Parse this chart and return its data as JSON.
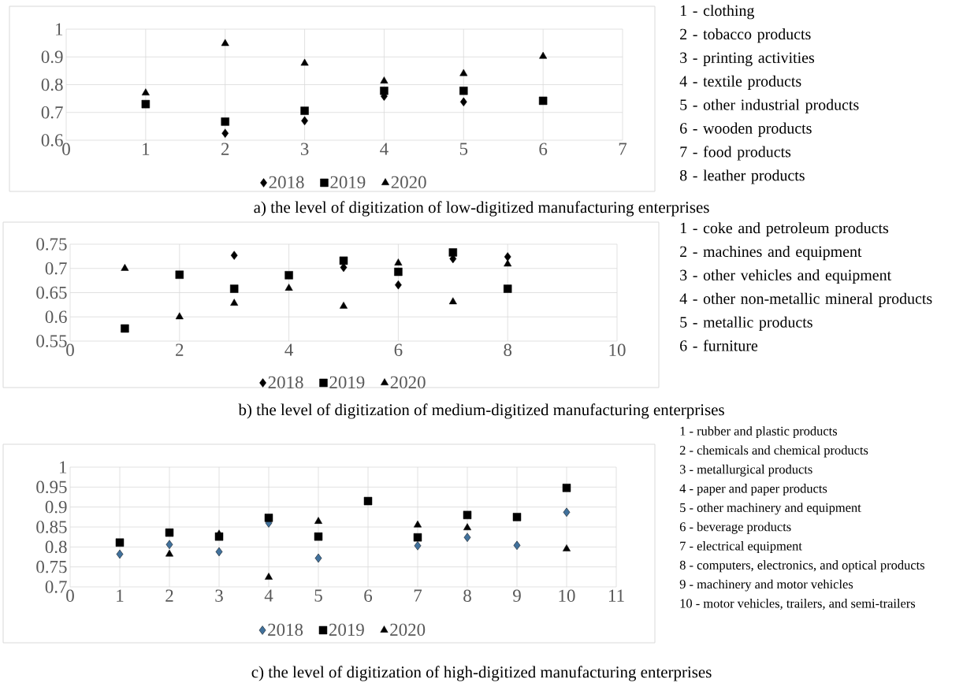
{
  "chart_data": [
    {
      "type": "scatter",
      "title": "a) the level of digitization of low-digitized manufacturing enterprises",
      "x": [
        1,
        2,
        3,
        4,
        5,
        6
      ],
      "xlim": [
        0,
        7
      ],
      "xticks": [
        0,
        1,
        2,
        3,
        4,
        5,
        6,
        7
      ],
      "ylim": [
        0.6,
        1
      ],
      "yticks": [
        0.6,
        0.7,
        0.8,
        0.9,
        1
      ],
      "grid": true,
      "legend": "bottom",
      "series": [
        {
          "name": "2018",
          "color": "#000000",
          "marker": "diamond",
          "values": [
            null,
            0.625,
            0.67,
            0.758,
            0.738,
            null
          ]
        },
        {
          "name": "2019",
          "color": "#000000",
          "marker": "square",
          "values": [
            0.73,
            0.667,
            0.706,
            0.778,
            0.778,
            0.742
          ]
        },
        {
          "name": "2020",
          "color": "#000000",
          "marker": "triangle",
          "values": [
            0.77,
            0.948,
            0.877,
            0.813,
            0.84,
            0.902
          ]
        }
      ],
      "annotations": [
        "1 - clothing",
        "2 - tobacco products",
        "3 - printing activities",
        "4 - textile products",
        "5 - other industrial products",
        "6 - wooden products",
        "7 - food products",
        "8 - leather products"
      ]
    },
    {
      "type": "scatter",
      "title": "b) the level of digitization of medium-digitized manufacturing enterprises",
      "x": [
        1,
        2,
        3,
        4,
        5,
        6,
        7,
        8
      ],
      "xlim": [
        0,
        10
      ],
      "xticks": [
        0,
        2,
        4,
        6,
        8,
        10
      ],
      "ylim": [
        0.55,
        0.75
      ],
      "yticks": [
        0.55,
        0.6,
        0.65,
        0.7,
        0.75
      ],
      "grid": true,
      "legend": "bottom",
      "series": [
        {
          "name": "2018",
          "color": "#000000",
          "marker": "diamond",
          "values": [
            null,
            null,
            0.727,
            null,
            0.702,
            0.666,
            0.72,
            0.724
          ]
        },
        {
          "name": "2019",
          "color": "#000000",
          "marker": "square",
          "values": [
            0.576,
            0.687,
            0.658,
            0.686,
            0.716,
            0.693,
            0.733,
            0.658
          ]
        },
        {
          "name": "2020",
          "color": "#000000",
          "marker": "triangle",
          "values": [
            0.7,
            0.6,
            0.628,
            0.659,
            0.622,
            0.711,
            0.631,
            0.709
          ]
        }
      ],
      "annotations": [
        "1 - coke and petroleum products",
        "2 - machines and equipment",
        "3 - other vehicles and equipment",
        "4 - other non-metallic mineral products",
        "5 - metallic products",
        "6 - furniture"
      ]
    },
    {
      "type": "scatter",
      "title": "c) the level of digitization of high-digitized manufacturing enterprises",
      "x": [
        1,
        2,
        3,
        4,
        5,
        6,
        7,
        8,
        9,
        10
      ],
      "xlim": [
        0,
        11
      ],
      "xticks": [
        0,
        1,
        2,
        3,
        4,
        5,
        6,
        7,
        8,
        9,
        10,
        11
      ],
      "ylim": [
        0.7,
        1
      ],
      "yticks": [
        0.7,
        0.75,
        0.8,
        0.85,
        0.9,
        0.95,
        1
      ],
      "grid": true,
      "legend": "bottom",
      "series": [
        {
          "name": "2018",
          "color": "#41719c",
          "marker": "diamond",
          "values": [
            0.782,
            0.806,
            0.788,
            0.86,
            0.772,
            null,
            0.803,
            0.824,
            0.804,
            0.887
          ]
        },
        {
          "name": "2019",
          "color": "#000000",
          "marker": "square",
          "values": [
            0.811,
            0.836,
            0.826,
            0.873,
            0.826,
            0.915,
            0.824,
            0.88,
            0.875,
            0.948
          ]
        },
        {
          "name": "2020",
          "color": "#000000",
          "marker": "triangle",
          "values": [
            null,
            0.782,
            0.832,
            0.724,
            0.864,
            null,
            0.855,
            0.848,
            null,
            0.795
          ]
        }
      ],
      "annotations": [
        "1 - rubber and plastic products",
        "2 - chemicals and chemical products",
        "3 - metallurgical products",
        "4 - paper and paper products",
        "5 - other machinery and equipment",
        "6 - beverage products",
        "7 - electrical equipment",
        "8 - computers, electronics, and optical products",
        "9 - machinery and motor vehicles",
        "10 - motor vehicles, trailers, and semi-trailers"
      ]
    }
  ]
}
